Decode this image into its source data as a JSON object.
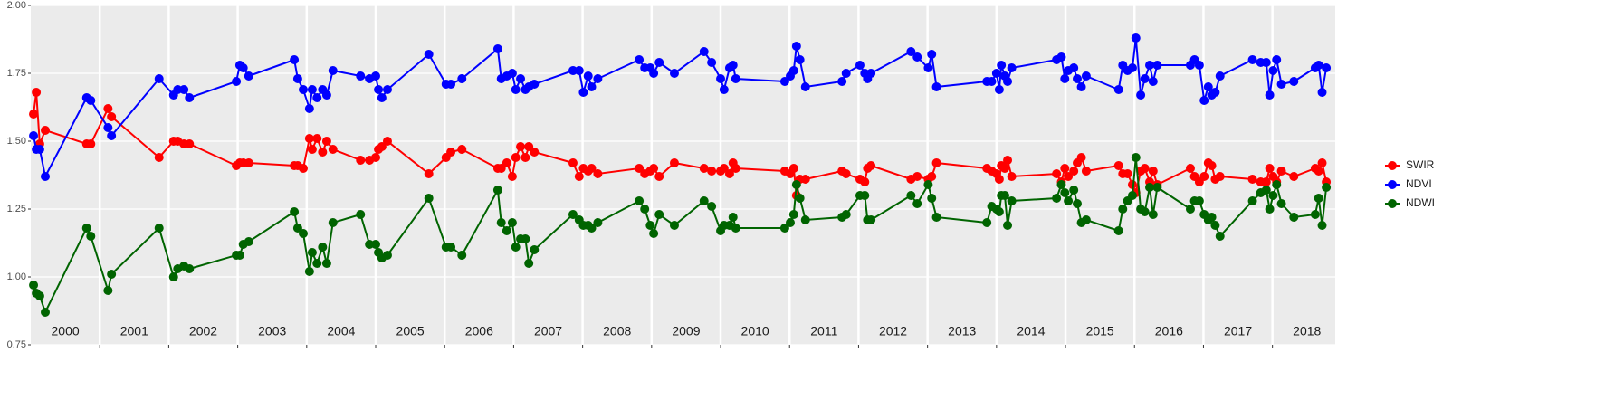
{
  "chart_data": {
    "type": "line",
    "x": [
      2000.04,
      2000.08,
      2000.13,
      2000.21,
      2000.81,
      2000.87,
      2001.12,
      2001.17,
      2001.86,
      2002.07,
      2002.13,
      2002.22,
      2002.3,
      2002.98,
      2003.03,
      2003.08,
      2003.16,
      2003.82,
      2003.87,
      2003.95,
      2004.04,
      2004.08,
      2004.15,
      2004.23,
      2004.29,
      2004.38,
      2004.78,
      2004.91,
      2005.0,
      2005.04,
      2005.09,
      2005.17,
      2005.77,
      2006.02,
      2006.09,
      2006.25,
      2006.77,
      2006.82,
      2006.9,
      2006.98,
      2007.03,
      2007.1,
      2007.17,
      2007.22,
      2007.3,
      2007.86,
      2007.95,
      2008.01,
      2008.08,
      2008.13,
      2008.22,
      2008.82,
      2008.9,
      2008.98,
      2009.03,
      2009.11,
      2009.33,
      2009.76,
      2009.87,
      2010.0,
      2010.05,
      2010.13,
      2010.18,
      2010.22,
      2010.93,
      2011.01,
      2011.06,
      2011.1,
      2011.15,
      2011.23,
      2011.76,
      2011.82,
      2012.02,
      2012.09,
      2012.13,
      2012.18,
      2012.76,
      2012.85,
      2013.01,
      2013.06,
      2013.13,
      2013.86,
      2013.93,
      2014.0,
      2014.04,
      2014.07,
      2014.12,
      2014.16,
      2014.22,
      2014.87,
      2014.94,
      2014.99,
      2015.04,
      2015.12,
      2015.17,
      2015.23,
      2015.3,
      2015.77,
      2015.83,
      2015.9,
      2015.97,
      2016.02,
      2016.09,
      2016.15,
      2016.22,
      2016.27,
      2016.33,
      2016.81,
      2016.87,
      2016.94,
      2017.01,
      2017.07,
      2017.12,
      2017.17,
      2017.24,
      2017.71,
      2017.83,
      2017.91,
      2017.96,
      2018.01,
      2018.06,
      2018.13,
      2018.31,
      2018.62,
      2018.67,
      2018.72,
      2018.78
    ],
    "series": [
      {
        "name": "SWIR",
        "color": "#ff0000",
        "values": [
          1.6,
          1.68,
          1.49,
          1.54,
          1.49,
          1.49,
          1.62,
          1.59,
          1.44,
          1.5,
          1.5,
          1.49,
          1.49,
          1.41,
          1.42,
          1.42,
          1.42,
          1.41,
          1.41,
          1.4,
          1.51,
          1.47,
          1.51,
          1.46,
          1.5,
          1.47,
          1.43,
          1.43,
          1.44,
          1.47,
          1.48,
          1.5,
          1.38,
          1.44,
          1.46,
          1.47,
          1.4,
          1.4,
          1.42,
          1.37,
          1.44,
          1.48,
          1.44,
          1.48,
          1.46,
          1.42,
          1.37,
          1.4,
          1.39,
          1.4,
          1.38,
          1.4,
          1.38,
          1.39,
          1.4,
          1.37,
          1.42,
          1.4,
          1.39,
          1.39,
          1.4,
          1.38,
          1.42,
          1.4,
          1.39,
          1.38,
          1.4,
          1.3,
          1.36,
          1.36,
          1.39,
          1.38,
          1.36,
          1.35,
          1.4,
          1.41,
          1.36,
          1.37,
          1.36,
          1.37,
          1.42,
          1.4,
          1.39,
          1.38,
          1.36,
          1.41,
          1.4,
          1.43,
          1.37,
          1.38,
          1.35,
          1.4,
          1.37,
          1.39,
          1.42,
          1.44,
          1.39,
          1.41,
          1.38,
          1.38,
          1.34,
          1.31,
          1.39,
          1.4,
          1.35,
          1.39,
          1.34,
          1.4,
          1.37,
          1.35,
          1.37,
          1.42,
          1.41,
          1.36,
          1.37,
          1.36,
          1.35,
          1.35,
          1.4,
          1.37,
          1.35,
          1.39,
          1.37,
          1.4,
          1.39,
          1.42,
          1.35
        ]
      },
      {
        "name": "NDVI",
        "color": "#0000ff",
        "values": [
          1.52,
          1.47,
          1.47,
          1.37,
          1.66,
          1.65,
          1.55,
          1.52,
          1.73,
          1.67,
          1.69,
          1.69,
          1.66,
          1.72,
          1.78,
          1.77,
          1.74,
          1.8,
          1.73,
          1.69,
          1.62,
          1.69,
          1.66,
          1.69,
          1.67,
          1.76,
          1.74,
          1.73,
          1.74,
          1.69,
          1.66,
          1.69,
          1.82,
          1.71,
          1.71,
          1.73,
          1.84,
          1.73,
          1.74,
          1.75,
          1.69,
          1.73,
          1.69,
          1.7,
          1.71,
          1.76,
          1.76,
          1.68,
          1.74,
          1.7,
          1.73,
          1.8,
          1.77,
          1.77,
          1.75,
          1.79,
          1.75,
          1.83,
          1.79,
          1.73,
          1.69,
          1.77,
          1.78,
          1.73,
          1.72,
          1.74,
          1.76,
          1.85,
          1.8,
          1.7,
          1.72,
          1.75,
          1.78,
          1.75,
          1.73,
          1.75,
          1.83,
          1.81,
          1.77,
          1.82,
          1.7,
          1.72,
          1.72,
          1.75,
          1.69,
          1.78,
          1.74,
          1.72,
          1.77,
          1.8,
          1.81,
          1.73,
          1.76,
          1.77,
          1.73,
          1.7,
          1.74,
          1.69,
          1.78,
          1.76,
          1.77,
          1.88,
          1.67,
          1.73,
          1.78,
          1.72,
          1.78,
          1.78,
          1.8,
          1.78,
          1.65,
          1.7,
          1.67,
          1.68,
          1.74,
          1.8,
          1.79,
          1.79,
          1.67,
          1.76,
          1.8,
          1.71,
          1.72,
          1.77,
          1.78,
          1.68,
          1.77
        ]
      },
      {
        "name": "NDWI",
        "color": "#006400",
        "values": [
          0.97,
          0.94,
          0.93,
          0.87,
          1.18,
          1.15,
          0.95,
          1.01,
          1.18,
          1.0,
          1.03,
          1.04,
          1.03,
          1.08,
          1.08,
          1.12,
          1.13,
          1.24,
          1.18,
          1.16,
          1.02,
          1.09,
          1.05,
          1.11,
          1.05,
          1.2,
          1.23,
          1.12,
          1.12,
          1.09,
          1.07,
          1.08,
          1.29,
          1.11,
          1.11,
          1.08,
          1.32,
          1.2,
          1.17,
          1.2,
          1.11,
          1.14,
          1.14,
          1.05,
          1.1,
          1.23,
          1.21,
          1.19,
          1.19,
          1.18,
          1.2,
          1.28,
          1.25,
          1.19,
          1.16,
          1.23,
          1.19,
          1.28,
          1.26,
          1.17,
          1.19,
          1.19,
          1.22,
          1.18,
          1.18,
          1.2,
          1.23,
          1.34,
          1.29,
          1.21,
          1.22,
          1.23,
          1.3,
          1.3,
          1.21,
          1.21,
          1.3,
          1.27,
          1.34,
          1.29,
          1.22,
          1.2,
          1.26,
          1.25,
          1.24,
          1.3,
          1.3,
          1.19,
          1.28,
          1.29,
          1.34,
          1.31,
          1.28,
          1.32,
          1.27,
          1.2,
          1.21,
          1.17,
          1.25,
          1.28,
          1.3,
          1.44,
          1.25,
          1.24,
          1.33,
          1.23,
          1.33,
          1.25,
          1.28,
          1.28,
          1.23,
          1.21,
          1.22,
          1.19,
          1.15,
          1.28,
          1.31,
          1.32,
          1.25,
          1.3,
          1.34,
          1.27,
          1.22,
          1.23,
          1.29,
          1.19,
          1.33
        ]
      }
    ],
    "xlim": [
      2000,
      2018.91
    ],
    "xticks": [
      2001,
      2002,
      2003,
      2004,
      2005,
      2006,
      2007,
      2008,
      2009,
      2010,
      2011,
      2012,
      2013,
      2014,
      2015,
      2016,
      2017,
      2018
    ],
    "year_labels": [
      {
        "value": 2000.5,
        "label": "2000"
      },
      {
        "value": 2001.5,
        "label": "2001"
      },
      {
        "value": 2002.5,
        "label": "2002"
      },
      {
        "value": 2003.5,
        "label": "2003"
      },
      {
        "value": 2004.5,
        "label": "2004"
      },
      {
        "value": 2005.5,
        "label": "2005"
      },
      {
        "value": 2006.5,
        "label": "2006"
      },
      {
        "value": 2007.5,
        "label": "2007"
      },
      {
        "value": 2008.5,
        "label": "2008"
      },
      {
        "value": 2009.5,
        "label": "2009"
      },
      {
        "value": 2010.5,
        "label": "2010"
      },
      {
        "value": 2011.5,
        "label": "2011"
      },
      {
        "value": 2012.5,
        "label": "2012"
      },
      {
        "value": 2013.5,
        "label": "2013"
      },
      {
        "value": 2014.5,
        "label": "2014"
      },
      {
        "value": 2015.5,
        "label": "2015"
      },
      {
        "value": 2016.5,
        "label": "2016"
      },
      {
        "value": 2017.5,
        "label": "2017"
      },
      {
        "value": 2018.5,
        "label": "2018"
      }
    ],
    "ylim": [
      0.75,
      2.0
    ],
    "yticks": [
      0.75,
      {
        "value": 1,
        "label": "1.00"
      },
      1.25,
      {
        "value": 1.5,
        "label": "1.50"
      },
      1.75,
      {
        "value": 2,
        "label": "2.00"
      }
    ],
    "grid": true,
    "legend": "right"
  }
}
